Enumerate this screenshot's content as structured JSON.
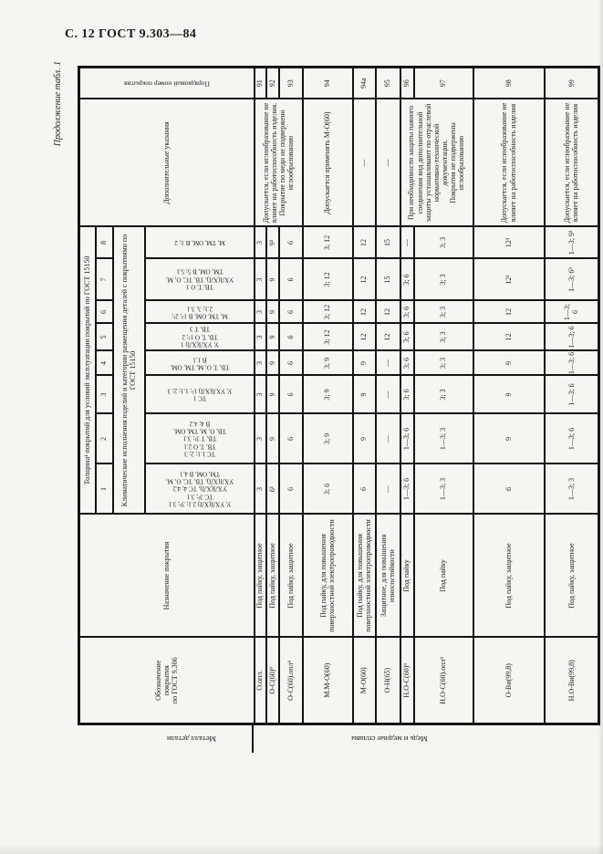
{
  "page": {
    "header": "С. 12 ГОСТ 9.303—84",
    "continuation": "Продолжение табл. 1"
  },
  "colors": {
    "paper": "#f5f5f2",
    "ink": "#1c1c1c",
    "border": "#141414"
  },
  "table": {
    "col_headers": {
      "metal": "Металл детали",
      "designation": "Обозначение\nпокрытия\nпо ГОСТ 9.306",
      "purpose": "Назначение покрытия",
      "thickness_group": "Толщина¹ покрытий для условий эксплуатации покрытий по ГОСТ 15150",
      "climate": "Климатические исполнения изделий и категории размещения деталей с покрытиями по ГОСТ 15150",
      "notes": "Дополнительные указания",
      "number": "Порядковый номер покрытия"
    },
    "column_numbers": [
      "1",
      "2",
      "3",
      "4",
      "5",
      "6",
      "7",
      "8"
    ],
    "climate_codes": [
      "У, УХЛ(ХЛ) 2.1; 3¹; 3.1\nТС 3¹; 3.1\nУХЛ(ХЛ), ТС 4; 4.2\nУХЛ(ХЛ), ТВ, ТС, О, М,\nТМ, ОМ, В 4.1",
      "ТС 1.1; 2; 3\nТВ, Т, О 2.1\nТВ, Т 3¹; 3.1\nТВ, О, М, ТМ, ОМ,\nВ 4; 4.2",
      "ТС 1\nУ, УХЛ(ХЛ) 1²; 1.1; 2; 3",
      "ТВ, Т, О, М, ТМ, ОМ,\nВ 1.1",
      "У, УХЛ(ХЛ) 1\nТВ, Т, О 1²; 2\nТВ, Т 3",
      "М, ТМ, ОМ, В 1²; 2¹;\n2.1; 3, 3.1",
      "ТВ, Т, О 1\nУХЛ(ХЛ), ТВ, ТС, О, М,\nТМ, ОМ, В 5; 5.1",
      "М, ТМ, ОМ, В 1; 2"
    ],
    "metal_group": "Медь и медные сплавы",
    "rows": [
      {
        "num": "91",
        "des": "О.опл.",
        "pur": "Под пайку, защитное",
        "vals": [
          "3",
          "3",
          "3",
          "3",
          "3",
          "3",
          "3",
          "3"
        ],
        "note": {
          "text": "Допускается, если иглообразование не влияет на работоспособность изделия. Покрытие по меди не подвержено иглообразованию",
          "span": 3
        }
      },
      {
        "num": "92",
        "des": "О-С(60)⁹",
        "pur": "Под пайку, защитное",
        "vals": [
          "6¹",
          "9",
          "9",
          "9",
          "9",
          "9",
          "9",
          "9³"
        ]
      },
      {
        "num": "93",
        "des": "О-С(60).опл⁹",
        "pur": "Под пайку, защитное",
        "vals": [
          "6",
          "6",
          "6",
          "6",
          "6",
          "6",
          "6",
          "6"
        ]
      },
      {
        "num": "94",
        "des": "М.М-О(60)",
        "pur": "Под пайку, для повышения поверхностной электропроводности",
        "vals": [
          "3; 6",
          "3; 9",
          "3; 9",
          "3; 9",
          "3; 12",
          "3; 12",
          "3; 12",
          "3; 12"
        ],
        "note": {
          "text": "Допускается применять М-О(60)",
          "span": 1
        }
      },
      {
        "num": "94а",
        "des": "М-О(60)",
        "pur": "Под пайку, для повышения поверхностной электропроводности",
        "vals": [
          "6",
          "9",
          "9",
          "9",
          "12",
          "12",
          "12",
          "12"
        ],
        "note": {
          "text": "—",
          "span": 1
        }
      },
      {
        "num": "95",
        "des": "О-Н(65)",
        "pur": "Защитное, для повышения износостойкости",
        "vals": [
          "—",
          "—",
          "—",
          "—",
          "12",
          "12",
          "15",
          "15"
        ],
        "note": {
          "text": "—",
          "span": 1
        }
      },
      {
        "num": "96",
        "des": "Н.О-С(60)⁹",
        "pur": "Под пайку",
        "vals": [
          "1—3; 6",
          "1—3; 6",
          "3; 6",
          "3; 6",
          "3; 6",
          "3; 6",
          "3; 6",
          "—"
        ],
        "note": {
          "text": "При необходимости защиты паяного соединения вид дополнительной защиты устанавливают по отраслевой нормативно-технической документации.\nПокрытия не подвержены иглообразованию",
          "span": 2
        }
      },
      {
        "num": "97",
        "des": "Н.О-С(60).опл⁹",
        "pur": "Под пайку",
        "vals": [
          "1—3; 3",
          "1—3; 3",
          "3; 3",
          "3; 3",
          "3; 3",
          "3; 3",
          "3; 3",
          "3; 3"
        ]
      },
      {
        "num": "98",
        "des": "О-Ви(99,8)",
        "pur": "Под пайку, защитное",
        "vals": [
          "6",
          "9",
          "9",
          "9",
          "12",
          "12",
          "12¹",
          "12³"
        ],
        "note": {
          "text": "Допускается, если иглообразование не влияет на работоспособность изделия",
          "span": 1
        }
      },
      {
        "num": "99",
        "des": "Н.О-Ви(99,8)",
        "pur": "Под пайку, защитное",
        "vals": [
          "1—3; 3",
          "1—3; 6",
          "1—3; 6",
          "1—3; 6",
          "1—3; 6",
          "1—3; 6",
          "1—3; 6³",
          "1—3; 9³"
        ],
        "note": {
          "text": "Допускается, если иглообразование не влияет на работоспособность изделия",
          "span": 1
        }
      }
    ]
  }
}
